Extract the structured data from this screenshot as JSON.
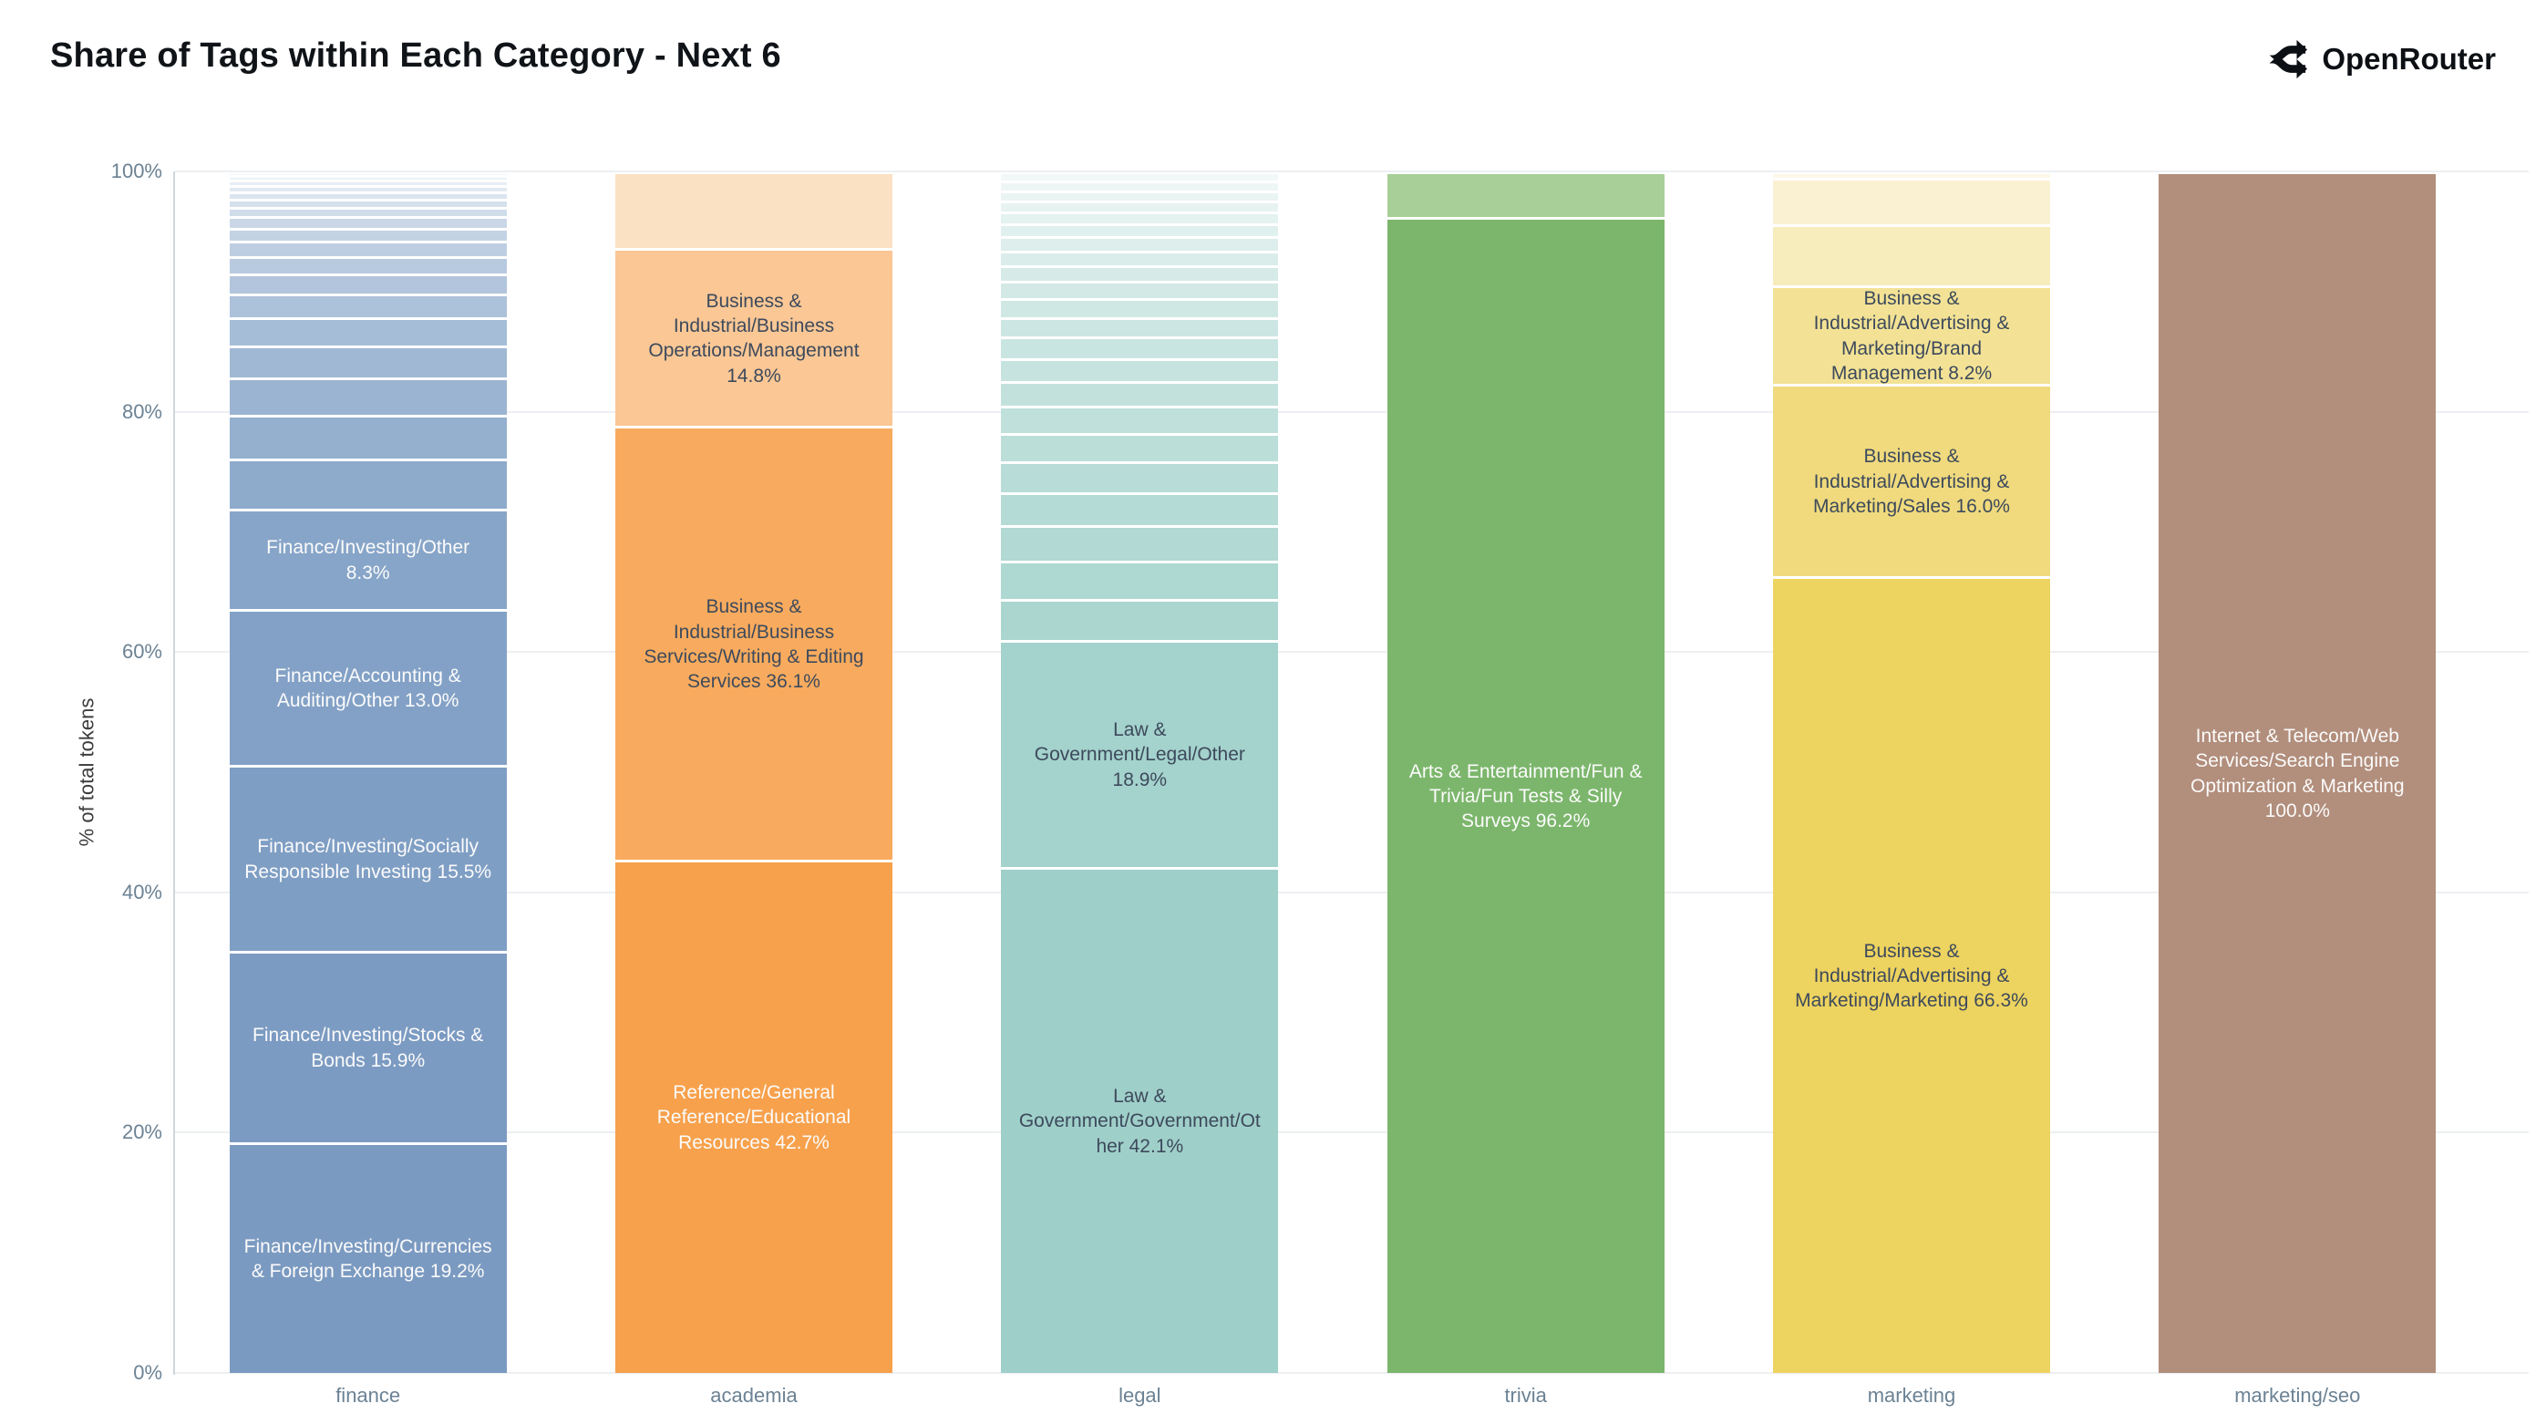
{
  "title": "Share of Tags within Each Category - Next 6",
  "brand": {
    "name": "OpenRouter",
    "icon": "route-split-icon",
    "color": "#0c0f14"
  },
  "y_axis": {
    "label": "% of total tokens",
    "ticks": [
      "0%",
      "20%",
      "40%",
      "60%",
      "80%",
      "100%"
    ],
    "tick_values": [
      0,
      20,
      40,
      60,
      80,
      100
    ]
  },
  "chart_data": {
    "type": "bar",
    "stacked": true,
    "title": "Share of Tags within Each Category - Next 6",
    "xlabel": "",
    "ylabel": "% of total tokens",
    "ylim": [
      0,
      100
    ],
    "grid": true,
    "legend": false,
    "categories": [
      "finance",
      "academia",
      "legal",
      "trivia",
      "marketing",
      "marketing/seo"
    ],
    "bars": [
      {
        "category": "finance",
        "segments": [
          {
            "pct": 19.2,
            "label": "Finance/Investing/Currencies & Foreign Exchange 19.2%",
            "color": "#7b9ac1",
            "text": "light"
          },
          {
            "pct": 15.9,
            "label": "Finance/Investing/Stocks & Bonds 15.9%",
            "color": "#7c9bc2",
            "text": "light"
          },
          {
            "pct": 15.5,
            "label": "Finance/Investing/Socially Responsible Investing 15.5%",
            "color": "#7f9ec4",
            "text": "light"
          },
          {
            "pct": 13.0,
            "label": "Finance/Accounting & Auditing/Other 13.0%",
            "color": "#83a1c6",
            "text": "light"
          },
          {
            "pct": 8.3,
            "label": "Finance/Investing/Other 8.3%",
            "color": "#87a5c8",
            "text": "light"
          }
        ],
        "unlabeled_remainder": {
          "total_pct": 28.1,
          "count": 18,
          "ratio": 0.86,
          "color_from": "#8fabcc",
          "color_to": "#f2f6fa"
        }
      },
      {
        "category": "academia",
        "segments": [
          {
            "pct": 42.7,
            "label": "Reference/General Reference/Educational Resources 42.7%",
            "color": "#f7a14c",
            "text": "light"
          },
          {
            "pct": 36.1,
            "label": "Business & Industrial/Business Services/Writing & Editing Services 36.1%",
            "color": "#f8ab5e",
            "text": "dark"
          },
          {
            "pct": 14.8,
            "label": "Business & Industrial/Business Operations/Management 14.8%",
            "color": "#fac795",
            "text": "dark"
          },
          {
            "pct": 6.4,
            "label": null,
            "color": "#fbe1c3"
          }
        ]
      },
      {
        "category": "legal",
        "segments": [
          {
            "pct": 42.1,
            "label": "Law & Government/Government/Other 42.1%",
            "color": "#9fcfc9",
            "text": "dark"
          },
          {
            "pct": 18.9,
            "label": "Law & Government/Legal/Other 18.9%",
            "color": "#a4d2cc",
            "text": "dark"
          }
        ],
        "unlabeled_remainder": {
          "total_pct": 39.0,
          "count": 22,
          "ratio": 0.93,
          "color_from": "#abd6d0",
          "color_to": "#f1f8f7"
        }
      },
      {
        "category": "trivia",
        "segments": [
          {
            "pct": 96.2,
            "label": "Arts & Entertainment/Fun & Trivia/Fun Tests & Silly Surveys 96.2%",
            "color": "#7cb66c",
            "text": "light"
          },
          {
            "pct": 3.8,
            "label": null,
            "color": "#a7cf97"
          }
        ]
      },
      {
        "category": "marketing",
        "segments": [
          {
            "pct": 66.3,
            "label": "Business & Industrial/Advertising & Marketing/Marketing 66.3%",
            "color": "#edd35f",
            "text": "dark"
          },
          {
            "pct": 16.0,
            "label": "Business & Industrial/Advertising & Marketing/Sales 16.0%",
            "color": "#f0da7d",
            "text": "dark"
          },
          {
            "pct": 8.2,
            "label": "Business & Industrial/Advertising & Marketing/Brand Management 8.2%",
            "color": "#f3e295",
            "text": "dark"
          },
          {
            "pct": 5.1,
            "label": null,
            "color": "#f7ecbb"
          },
          {
            "pct": 3.9,
            "label": null,
            "color": "#faf1d3"
          },
          {
            "pct": 0.5,
            "label": null,
            "color": "#fdf8e8"
          }
        ]
      },
      {
        "category": "marketing/seo",
        "segments": [
          {
            "pct": 100.0,
            "label": "Internet & Telecom/Web Services/Search Engine Optimization & Marketing 100.0%",
            "color": "#b28e7c",
            "text": "light"
          }
        ]
      }
    ]
  },
  "style": {
    "gridline_color": "#edeff2",
    "axis_line_color": "#cfd7dd",
    "tick_text_color": "#6b8294",
    "dark_label_color": "#3d4a5c",
    "light_label_color": "#fbfbfb",
    "background": "#ffffff"
  }
}
